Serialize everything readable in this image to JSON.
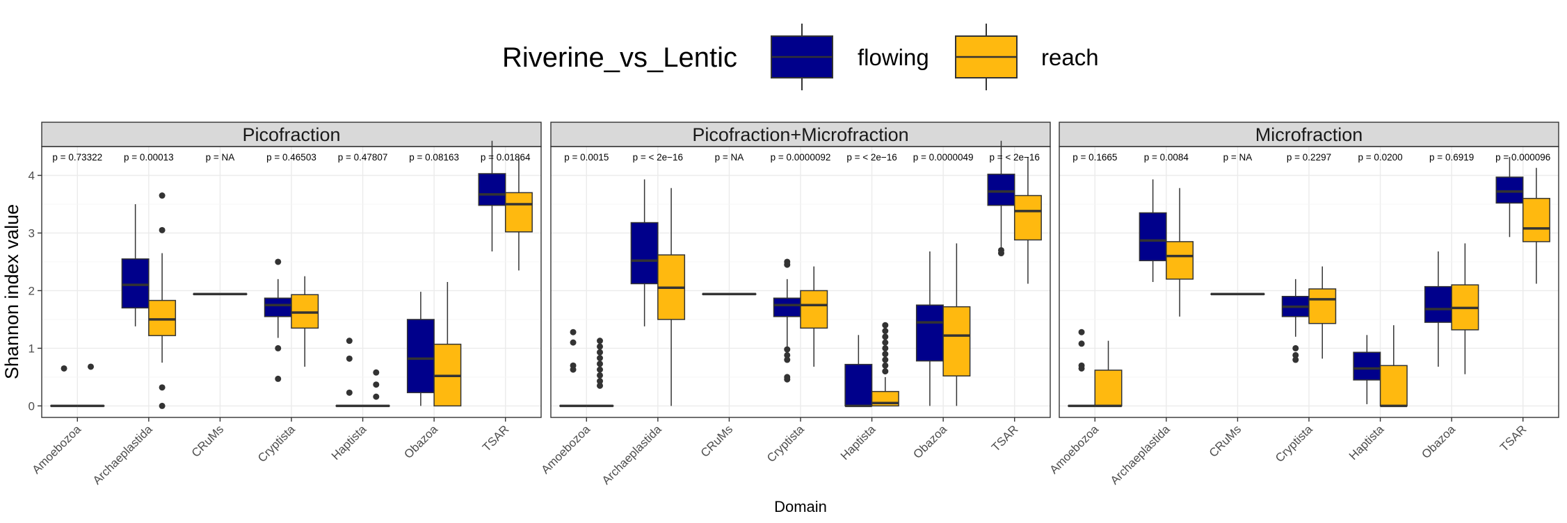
{
  "chart_data": {
    "type": "box",
    "xlabel": "Domain",
    "ylabel": "Shannon index value",
    "ylim": [
      -0.2,
      4.5
    ],
    "yticks": [
      0,
      1,
      2,
      3,
      4
    ],
    "categories": [
      "Amoebozoa",
      "Archaeplastida",
      "CRuMs",
      "Cryptista",
      "Haptista",
      "Obazoa",
      "TSAR"
    ],
    "legend": {
      "title": "Riverine_vs_Lentic",
      "position": "top",
      "entries": [
        {
          "name": "flowing",
          "color": "#00008B"
        },
        {
          "name": "reach",
          "color": "#FFB90F"
        }
      ]
    },
    "grid": true,
    "panels": [
      {
        "title": "Picofraction",
        "pvalues": [
          "p = 0.73322",
          "p = 0.00013",
          "p = NA",
          "p = 0.46503",
          "p = 0.47807",
          "p = 0.08163",
          "p = 0.01864"
        ],
        "boxes": [
          {
            "category": "Amoebozoa",
            "series": "flowing",
            "min": 0,
            "q1": 0,
            "median": 0,
            "q3": 0,
            "max": 0,
            "outliers": [
              0.65
            ]
          },
          {
            "category": "Amoebozoa",
            "series": "reach",
            "min": 0,
            "q1": 0,
            "median": 0,
            "q3": 0,
            "max": 0,
            "outliers": [
              0.68
            ]
          },
          {
            "category": "Archaeplastida",
            "series": "flowing",
            "min": 1.38,
            "q1": 1.7,
            "median": 2.1,
            "q3": 2.55,
            "max": 3.5,
            "outliers": []
          },
          {
            "category": "Archaeplastida",
            "series": "reach",
            "min": 0.75,
            "q1": 1.22,
            "median": 1.5,
            "q3": 1.83,
            "max": 2.65,
            "outliers": [
              3.65,
              3.05,
              0.32,
              0.0
            ]
          },
          {
            "category": "CRuMs",
            "series": "flowing",
            "min": 1.94,
            "q1": 1.94,
            "median": 1.94,
            "q3": 1.94,
            "max": 1.94,
            "outliers": []
          },
          {
            "category": "CRuMs",
            "series": "reach",
            "min": 1.94,
            "q1": 1.94,
            "median": 1.94,
            "q3": 1.94,
            "max": 1.94,
            "outliers": []
          },
          {
            "category": "Cryptista",
            "series": "flowing",
            "min": 1.18,
            "q1": 1.55,
            "median": 1.75,
            "q3": 1.87,
            "max": 2.2,
            "outliers": [
              2.5,
              1.0,
              0.47
            ]
          },
          {
            "category": "Cryptista",
            "series": "reach",
            "min": 0.68,
            "q1": 1.35,
            "median": 1.62,
            "q3": 1.93,
            "max": 2.25,
            "outliers": []
          },
          {
            "category": "Haptista",
            "series": "flowing",
            "min": 0,
            "q1": 0,
            "median": 0,
            "q3": 0,
            "max": 0,
            "outliers": [
              1.13,
              0.82,
              0.23
            ]
          },
          {
            "category": "Haptista",
            "series": "reach",
            "min": 0,
            "q1": 0,
            "median": 0,
            "q3": 0,
            "max": 0,
            "outliers": [
              0.58,
              0.37,
              0.16
            ]
          },
          {
            "category": "Obazoa",
            "series": "flowing",
            "min": 0.0,
            "q1": 0.23,
            "median": 0.82,
            "q3": 1.5,
            "max": 1.98,
            "outliers": []
          },
          {
            "category": "Obazoa",
            "series": "reach",
            "min": 0.0,
            "q1": 0.0,
            "median": 0.52,
            "q3": 1.07,
            "max": 2.15,
            "outliers": []
          },
          {
            "category": "TSAR",
            "series": "flowing",
            "min": 2.68,
            "q1": 3.48,
            "median": 3.67,
            "q3": 4.03,
            "max": 4.6,
            "outliers": []
          },
          {
            "category": "TSAR",
            "series": "reach",
            "min": 2.35,
            "q1": 3.02,
            "median": 3.5,
            "q3": 3.7,
            "max": 4.3,
            "outliers": []
          }
        ]
      },
      {
        "title": "Picofraction+Microfraction",
        "pvalues": [
          "p = 0.0015",
          "p = < 2e−16",
          "p = NA",
          "p = 0.0000092",
          "p = < 2e−16",
          "p = 0.0000049",
          "p = < 2e−16"
        ],
        "boxes": [
          {
            "category": "Amoebozoa",
            "series": "flowing",
            "min": 0,
            "q1": 0,
            "median": 0,
            "q3": 0,
            "max": 0,
            "outliers": [
              1.28,
              1.1,
              0.7,
              0.63
            ]
          },
          {
            "category": "Amoebozoa",
            "series": "reach",
            "min": 0,
            "q1": 0,
            "median": 0,
            "q3": 0,
            "max": 0,
            "outliers": [
              1.13,
              1.03,
              0.93,
              0.83,
              0.73,
              0.63,
              0.53,
              0.43,
              0.35
            ]
          },
          {
            "category": "Archaeplastida",
            "series": "flowing",
            "min": 1.38,
            "q1": 2.12,
            "median": 2.52,
            "q3": 3.18,
            "max": 3.93,
            "outliers": []
          },
          {
            "category": "Archaeplastida",
            "series": "reach",
            "min": 0.0,
            "q1": 1.5,
            "median": 2.05,
            "q3": 2.62,
            "max": 3.78,
            "outliers": []
          },
          {
            "category": "CRuMs",
            "series": "flowing",
            "min": 1.94,
            "q1": 1.94,
            "median": 1.94,
            "q3": 1.94,
            "max": 1.94,
            "outliers": []
          },
          {
            "category": "CRuMs",
            "series": "reach",
            "min": 1.94,
            "q1": 1.94,
            "median": 1.94,
            "q3": 1.94,
            "max": 1.94,
            "outliers": []
          },
          {
            "category": "Cryptista",
            "series": "flowing",
            "min": 1.0,
            "q1": 1.55,
            "median": 1.75,
            "q3": 1.87,
            "max": 2.2,
            "outliers": [
              2.5,
              2.45,
              0.98,
              0.88,
              0.8,
              0.5,
              0.46
            ]
          },
          {
            "category": "Cryptista",
            "series": "reach",
            "min": 0.68,
            "q1": 1.35,
            "median": 1.75,
            "q3": 2.0,
            "max": 2.42,
            "outliers": []
          },
          {
            "category": "Haptista",
            "series": "flowing",
            "min": 0.0,
            "q1": 0.0,
            "median": 0.0,
            "q3": 0.72,
            "max": 1.23,
            "outliers": []
          },
          {
            "category": "Haptista",
            "series": "reach",
            "min": 0.0,
            "q1": 0.0,
            "median": 0.05,
            "q3": 0.25,
            "max": 0.5,
            "outliers": [
              1.4,
              1.3,
              1.2,
              1.1,
              1.0,
              0.9,
              0.8,
              0.7,
              0.6
            ]
          },
          {
            "category": "Obazoa",
            "series": "flowing",
            "min": 0.0,
            "q1": 0.78,
            "median": 1.45,
            "q3": 1.75,
            "max": 2.68,
            "outliers": []
          },
          {
            "category": "Obazoa",
            "series": "reach",
            "min": 0.0,
            "q1": 0.52,
            "median": 1.22,
            "q3": 1.72,
            "max": 2.82,
            "outliers": []
          },
          {
            "category": "TSAR",
            "series": "flowing",
            "min": 2.75,
            "q1": 3.48,
            "median": 3.72,
            "q3": 4.02,
            "max": 4.6,
            "outliers": [
              2.7,
              2.65
            ]
          },
          {
            "category": "TSAR",
            "series": "reach",
            "min": 2.12,
            "q1": 2.88,
            "median": 3.38,
            "q3": 3.65,
            "max": 4.32,
            "outliers": []
          }
        ]
      },
      {
        "title": "Microfraction",
        "pvalues": [
          "p = 0.1665",
          "p = 0.0084",
          "p = NA",
          "p = 0.2297",
          "p = 0.0200",
          "p = 0.6919",
          "p = 0.000096"
        ],
        "boxes": [
          {
            "category": "Amoebozoa",
            "series": "flowing",
            "min": 0,
            "q1": 0,
            "median": 0,
            "q3": 0,
            "max": 0,
            "outliers": [
              1.28,
              1.08,
              0.7,
              0.65
            ]
          },
          {
            "category": "Amoebozoa",
            "series": "reach",
            "min": 0.0,
            "q1": 0.0,
            "median": 0.0,
            "q3": 0.62,
            "max": 1.13,
            "outliers": []
          },
          {
            "category": "Archaeplastida",
            "series": "flowing",
            "min": 2.15,
            "q1": 2.52,
            "median": 2.87,
            "q3": 3.35,
            "max": 3.93,
            "outliers": []
          },
          {
            "category": "Archaeplastida",
            "series": "reach",
            "min": 1.55,
            "q1": 2.2,
            "median": 2.6,
            "q3": 2.85,
            "max": 3.78,
            "outliers": []
          },
          {
            "category": "CRuMs",
            "series": "flowing",
            "min": 1.94,
            "q1": 1.94,
            "median": 1.94,
            "q3": 1.94,
            "max": 1.94,
            "outliers": []
          },
          {
            "category": "CRuMs",
            "series": "reach",
            "min": 1.94,
            "q1": 1.94,
            "median": 1.94,
            "q3": 1.94,
            "max": 1.94,
            "outliers": []
          },
          {
            "category": "Cryptista",
            "series": "flowing",
            "min": 1.2,
            "q1": 1.55,
            "median": 1.72,
            "q3": 1.9,
            "max": 2.2,
            "outliers": [
              1.0,
              0.88,
              0.8
            ]
          },
          {
            "category": "Cryptista",
            "series": "reach",
            "min": 0.82,
            "q1": 1.43,
            "median": 1.85,
            "q3": 2.03,
            "max": 2.42,
            "outliers": []
          },
          {
            "category": "Haptista",
            "series": "flowing",
            "min": 0.03,
            "q1": 0.45,
            "median": 0.65,
            "q3": 0.93,
            "max": 1.23,
            "outliers": []
          },
          {
            "category": "Haptista",
            "series": "reach",
            "min": 0.0,
            "q1": 0.0,
            "median": 0.0,
            "q3": 0.7,
            "max": 1.4,
            "outliers": []
          },
          {
            "category": "Obazoa",
            "series": "flowing",
            "min": 0.68,
            "q1": 1.45,
            "median": 1.68,
            "q3": 2.07,
            "max": 2.68,
            "outliers": []
          },
          {
            "category": "Obazoa",
            "series": "reach",
            "min": 0.55,
            "q1": 1.32,
            "median": 1.7,
            "q3": 2.1,
            "max": 2.82,
            "outliers": []
          },
          {
            "category": "TSAR",
            "series": "flowing",
            "min": 2.93,
            "q1": 3.52,
            "median": 3.72,
            "q3": 3.97,
            "max": 4.32,
            "outliers": []
          },
          {
            "category": "TSAR",
            "series": "reach",
            "min": 2.12,
            "q1": 2.85,
            "median": 3.08,
            "q3": 3.6,
            "max": 4.13,
            "outliers": []
          }
        ]
      }
    ]
  }
}
